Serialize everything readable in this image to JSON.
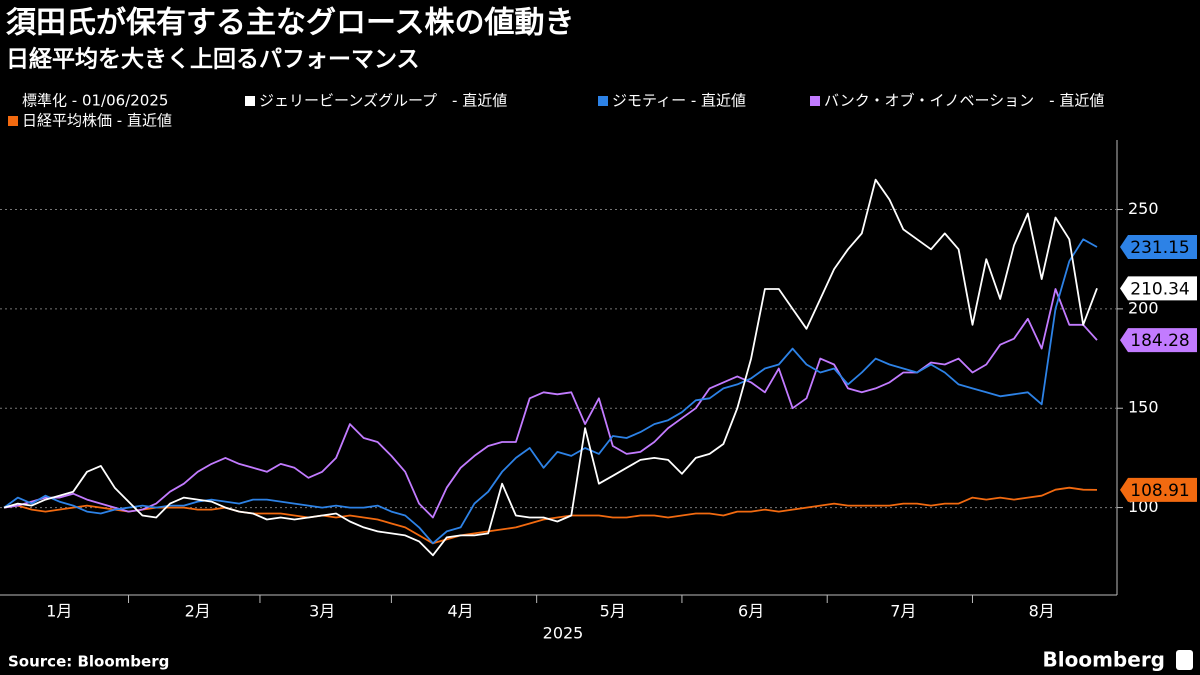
{
  "chart_data": {
    "type": "line",
    "title": "須田氏が保有する主なグロース株の値動き",
    "subtitle": "日経平均を大きく上回るパフォーマンス",
    "normalized_note": "標準化 - 01/06/2025",
    "xlabel": "2025",
    "source": "Source: Bloomberg",
    "brand": "Bloomberg",
    "categories": [
      null,
      null,
      null,
      null,
      "1月",
      null,
      null,
      null,
      null,
      null,
      null,
      null,
      null,
      null,
      "2月",
      null,
      null,
      null,
      null,
      null,
      null,
      null,
      null,
      "3月",
      null,
      null,
      null,
      null,
      null,
      null,
      null,
      null,
      null,
      "4月",
      null,
      null,
      null,
      null,
      null,
      null,
      null,
      null,
      null,
      null,
      "5月",
      null,
      null,
      null,
      null,
      null,
      null,
      null,
      null,
      null,
      "6月",
      null,
      null,
      null,
      null,
      null,
      null,
      null,
      null,
      null,
      null,
      "7月",
      null,
      null,
      null,
      null,
      null,
      null,
      null,
      null,
      null,
      "8月",
      null,
      null,
      null,
      null
    ],
    "ylim": [
      56,
      285
    ],
    "yticks": [
      100,
      150,
      200,
      250
    ],
    "grid": true,
    "series": [
      {
        "name": "ジェリービーンズグループ　- 直近値",
        "color": "#ffffff",
        "values": [
          100,
          102,
          101,
          104,
          106,
          108,
          118,
          121,
          110,
          103,
          96,
          95,
          102,
          105,
          104,
          103,
          100,
          98,
          97,
          94,
          95,
          94,
          95,
          96,
          97,
          93,
          90,
          88,
          87,
          86,
          83,
          76,
          85,
          86,
          86,
          87,
          112,
          96,
          95,
          95,
          93,
          96,
          140,
          112,
          116,
          120,
          124,
          125,
          124,
          117,
          125,
          127,
          132,
          150,
          175,
          210,
          210,
          200,
          190,
          205,
          220,
          230,
          238,
          265,
          255,
          240,
          235,
          230,
          238,
          230,
          192,
          225,
          205,
          232,
          248,
          215,
          246,
          235,
          192,
          210.34
        ],
        "value_labels": [
          null,
          null,
          null,
          null,
          null,
          null,
          null,
          null,
          null,
          null,
          null,
          null,
          null,
          null,
          null,
          null,
          null,
          null,
          null,
          null,
          null,
          null,
          null,
          null,
          null,
          null,
          null,
          null,
          null,
          null,
          null,
          null,
          null,
          null,
          null,
          null,
          null,
          null,
          null,
          null,
          null,
          null,
          null,
          null,
          null,
          null,
          null,
          null,
          null,
          null,
          null,
          null,
          null,
          null,
          null,
          null,
          null,
          null,
          null,
          null,
          null,
          null,
          null,
          null,
          null,
          null,
          null,
          null,
          null,
          null,
          null,
          null,
          null,
          null,
          null,
          null,
          null,
          null,
          null,
          "210.34"
        ]
      },
      {
        "name": "ジモティー - 直近値",
        "color": "#2d82e6",
        "values": [
          100,
          105,
          102,
          106,
          103,
          101,
          98,
          97,
          99,
          100,
          101,
          100,
          101,
          101,
          103,
          104,
          103,
          102,
          104,
          104,
          103,
          102,
          101,
          100,
          101,
          100,
          100,
          101,
          98,
          96,
          90,
          82,
          88,
          90,
          102,
          108,
          118,
          125,
          130,
          120,
          128,
          126,
          130,
          127,
          136,
          135,
          138,
          142,
          144,
          148,
          154,
          155,
          160,
          162,
          165,
          170,
          172,
          180,
          172,
          168,
          170,
          162,
          168,
          175,
          172,
          170,
          168,
          172,
          168,
          162,
          160,
          158,
          156,
          157,
          158,
          152,
          200,
          224,
          235,
          231.15
        ],
        "value_labels": [
          null,
          null,
          null,
          null,
          null,
          null,
          null,
          null,
          null,
          null,
          null,
          null,
          null,
          null,
          null,
          null,
          null,
          null,
          null,
          null,
          null,
          null,
          null,
          null,
          null,
          null,
          null,
          null,
          null,
          null,
          null,
          null,
          null,
          null,
          null,
          null,
          null,
          null,
          null,
          null,
          null,
          null,
          null,
          null,
          null,
          null,
          null,
          null,
          null,
          null,
          null,
          null,
          null,
          null,
          null,
          null,
          null,
          null,
          null,
          null,
          null,
          null,
          null,
          null,
          null,
          null,
          null,
          null,
          null,
          null,
          null,
          null,
          null,
          null,
          null,
          null,
          null,
          null,
          null,
          "231.15"
        ]
      },
      {
        "name": "バンク・オブ・イノベーション　- 直近値",
        "color": "#c27bff",
        "values": [
          100,
          101,
          103,
          105,
          105,
          107,
          104,
          102,
          100,
          98,
          99,
          102,
          108,
          112,
          118,
          122,
          125,
          122,
          120,
          118,
          122,
          120,
          115,
          118,
          125,
          142,
          135,
          133,
          126,
          118,
          102,
          95,
          110,
          120,
          126,
          131,
          133,
          133,
          155,
          158,
          157,
          158,
          142,
          155,
          131,
          127,
          128,
          133,
          140,
          145,
          150,
          160,
          163,
          166,
          163,
          158,
          170,
          150,
          155,
          175,
          172,
          160,
          158,
          160,
          163,
          168,
          168,
          173,
          172,
          175,
          168,
          172,
          182,
          185,
          195,
          180,
          210,
          192,
          192,
          184.28
        ],
        "value_labels": [
          null,
          null,
          null,
          null,
          null,
          null,
          null,
          null,
          null,
          null,
          null,
          null,
          null,
          null,
          null,
          null,
          null,
          null,
          null,
          null,
          null,
          null,
          null,
          null,
          null,
          null,
          null,
          null,
          null,
          null,
          null,
          null,
          null,
          null,
          null,
          null,
          null,
          null,
          null,
          null,
          null,
          null,
          null,
          null,
          null,
          null,
          null,
          null,
          null,
          null,
          null,
          null,
          null,
          null,
          null,
          null,
          null,
          null,
          null,
          null,
          null,
          null,
          null,
          null,
          null,
          null,
          null,
          null,
          null,
          null,
          null,
          null,
          null,
          null,
          null,
          null,
          null,
          null,
          null,
          "184.28"
        ]
      },
      {
        "name": "日経平均株価 - 直近値",
        "color": "#f26a10",
        "values": [
          100,
          101,
          99,
          98,
          99,
          100,
          101,
          100,
          99,
          98,
          99,
          100,
          100,
          100,
          99,
          99,
          100,
          98,
          97,
          97,
          97,
          96,
          95,
          96,
          95,
          96,
          95,
          94,
          92,
          90,
          86,
          82,
          84,
          86,
          87,
          88,
          89,
          90,
          92,
          94,
          95,
          96,
          96,
          96,
          95,
          95,
          96,
          96,
          95,
          96,
          97,
          97,
          96,
          98,
          98,
          99,
          98,
          99,
          100,
          101,
          102,
          101,
          101,
          101,
          101,
          102,
          102,
          101,
          102,
          102,
          105,
          104,
          105,
          104,
          105,
          106,
          109,
          110,
          109,
          108.91
        ],
        "value_labels": [
          null,
          null,
          null,
          null,
          null,
          null,
          null,
          null,
          null,
          null,
          null,
          null,
          null,
          null,
          null,
          null,
          null,
          null,
          null,
          null,
          null,
          null,
          null,
          null,
          null,
          null,
          null,
          null,
          null,
          null,
          null,
          null,
          null,
          null,
          null,
          null,
          null,
          null,
          null,
          null,
          null,
          null,
          null,
          null,
          null,
          null,
          null,
          null,
          null,
          null,
          null,
          null,
          null,
          null,
          null,
          null,
          null,
          null,
          null,
          null,
          null,
          null,
          null,
          null,
          null,
          null,
          null,
          null,
          null,
          null,
          null,
          null,
          null,
          null,
          null,
          null,
          null,
          null,
          null,
          "108.91"
        ]
      }
    ]
  }
}
